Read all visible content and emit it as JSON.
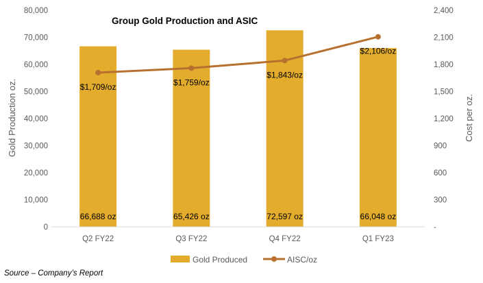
{
  "chart_data": {
    "type": "bar",
    "title": "Group Gold Production and ASIC",
    "categories": [
      "Q2 FY22",
      "Q3 FY22",
      "Q4 FY22",
      "Q1 FY23"
    ],
    "series": [
      {
        "name": "Gold Produced",
        "type": "bar",
        "axis": "left",
        "color": "#E3AC2C",
        "values": [
          66688,
          65426,
          72597,
          66048
        ],
        "labels": [
          "66,688 oz",
          "65,426 oz",
          "72,597 oz",
          "66,048 oz"
        ]
      },
      {
        "name": "AISC/oz",
        "type": "line",
        "axis": "right",
        "color": "#B7702E",
        "values": [
          1709,
          1759,
          1843,
          2106
        ],
        "labels": [
          "$1,709/oz",
          "$1,759/oz",
          "$1,843/oz",
          "$2,106/oz"
        ]
      }
    ],
    "ylabel": "Gold Production oz.",
    "ylim": [
      0,
      80000
    ],
    "yticks": [
      "0",
      "10,000",
      "20,000",
      "30,000",
      "40,000",
      "50,000",
      "60,000",
      "70,000",
      "80,000"
    ],
    "y2label": "Cost per oz.",
    "y2lim": [
      0,
      2400
    ],
    "y2ticks": [
      "-",
      "300",
      "600",
      "900",
      "1,200",
      "1,500",
      "1,800",
      "2,100",
      "2,400"
    ],
    "legend_position": "bottom",
    "grid": false
  },
  "footer": {
    "source": "Source – Company’s Report"
  }
}
